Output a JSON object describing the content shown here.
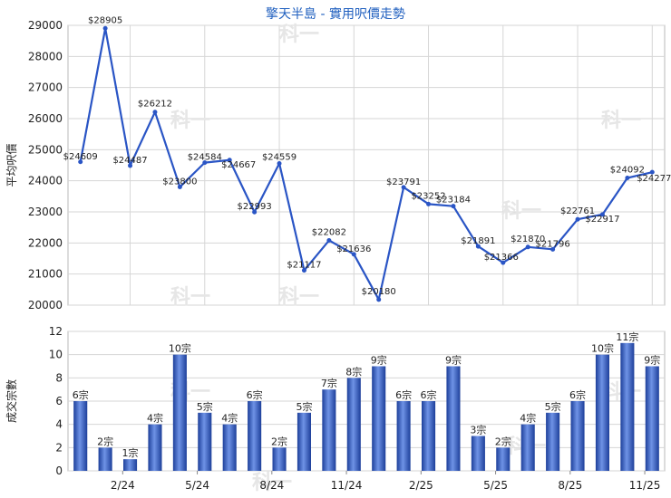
{
  "chart_data": [
    {
      "type": "line",
      "title": "擎天半島 - 實用呎價走勢",
      "ylabel": "平均呎價",
      "ylim": [
        20000,
        29000
      ],
      "yticks": [
        20000,
        21000,
        22000,
        23000,
        24000,
        25000,
        26000,
        27000,
        28000,
        29000
      ],
      "xticks": [
        "2/24",
        "5/24",
        "8/24",
        "11/24",
        "2/25",
        "5/25",
        "8/25",
        "11/25"
      ],
      "grid": true,
      "color": "#2a55c5",
      "values": [
        24609,
        28905,
        24487,
        26212,
        23800,
        24584,
        24667,
        22993,
        24559,
        21117,
        22082,
        21636,
        20180,
        23791,
        23252,
        23184,
        21891,
        21366,
        21870,
        21796,
        22761,
        22917,
        24092,
        24277
      ],
      "labels": [
        "$24609",
        "$28905",
        "$24487",
        "$26212",
        "$23800",
        "$24584",
        "$24667",
        "$22993",
        "$24559",
        "$21117",
        "$22082",
        "$21636",
        "$20180",
        "$23791",
        "$23252",
        "$23184",
        "$21891",
        "$21366",
        "$21870",
        "$21796",
        "$22761",
        "$22917",
        "$24092",
        "$24277"
      ]
    },
    {
      "type": "bar",
      "ylabel": "成交宗數",
      "ylim": [
        0,
        12
      ],
      "yticks": [
        0,
        2,
        4,
        6,
        8,
        10,
        12
      ],
      "xticks": [
        "2/24",
        "5/24",
        "8/24",
        "11/24",
        "2/25",
        "5/25",
        "8/25",
        "11/25"
      ],
      "grid": true,
      "color": "#2a55c5",
      "values": [
        6,
        2,
        1,
        4,
        10,
        5,
        4,
        6,
        2,
        5,
        7,
        8,
        9,
        6,
        6,
        9,
        3,
        2,
        4,
        5,
        6,
        10,
        11,
        9
      ],
      "labels": [
        "6宗",
        "2宗",
        "1宗",
        "4宗",
        "10宗",
        "5宗",
        "4宗",
        "6宗",
        "2宗",
        "5宗",
        "7宗",
        "8宗",
        "9宗",
        "6宗",
        "6宗",
        "9宗",
        "3宗",
        "2宗",
        "4宗",
        "5宗",
        "6宗",
        "10宗",
        "11宗",
        "9宗"
      ]
    }
  ],
  "watermark": "科一"
}
